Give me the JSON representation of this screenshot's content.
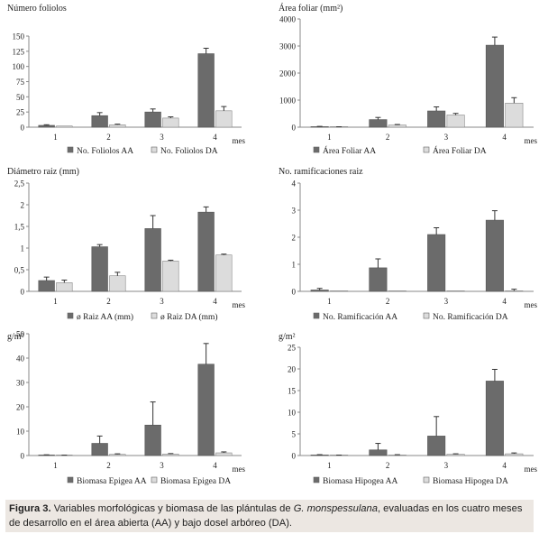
{
  "x_axis_unit": "mes",
  "chart_data": [
    {
      "type": "bar",
      "title": "Número foliolos",
      "categories": [
        "1",
        "2",
        "3",
        "4"
      ],
      "ylim": [
        0,
        150
      ],
      "yticks": [
        "0",
        "25",
        "50",
        "75",
        "100",
        "125",
        "150"
      ],
      "tick_values": [
        0,
        25,
        50,
        75,
        100,
        125,
        150
      ],
      "series": [
        {
          "name": "No. Foliolos AA",
          "color": "#6b6b6b",
          "values": [
            3,
            19,
            25,
            121
          ],
          "errors": [
            1,
            5,
            5,
            9
          ]
        },
        {
          "name": "No. Foliolos DA",
          "color": "#dcdcdc",
          "values": [
            2,
            4,
            15,
            27
          ],
          "errors": [
            0,
            1,
            2,
            7
          ]
        }
      ]
    },
    {
      "type": "bar",
      "title": "Área foliar (mm²)",
      "categories": [
        "1",
        "2",
        "3",
        "4"
      ],
      "ylim": [
        0,
        4000
      ],
      "yticks": [
        "0",
        "1000",
        "2000",
        "3000",
        "4000"
      ],
      "tick_values": [
        0,
        1000,
        2000,
        3000,
        4000
      ],
      "series": [
        {
          "name": "Área Foliar  AA",
          "color": "#6b6b6b",
          "values": [
            20,
            280,
            600,
            3030
          ],
          "errors": [
            10,
            80,
            150,
            300
          ]
        },
        {
          "name": "Área Foliar DA",
          "color": "#dcdcdc",
          "values": [
            10,
            80,
            450,
            890
          ],
          "errors": [
            5,
            20,
            60,
            200
          ]
        }
      ]
    },
    {
      "type": "bar",
      "title": "Diámetro raiz (mm)",
      "categories": [
        "1",
        "2",
        "3",
        "4"
      ],
      "ylim": [
        0,
        2.5
      ],
      "yticks": [
        "0",
        "0,5",
        "1",
        "1,5",
        "2",
        "2,5"
      ],
      "tick_values": [
        0,
        0.5,
        1,
        1.5,
        2,
        2.5
      ],
      "series": [
        {
          "name": "ø Raiz AA (mm)",
          "color": "#6b6b6b",
          "values": [
            0.25,
            1.03,
            1.45,
            1.83
          ],
          "errors": [
            0.08,
            0.05,
            0.3,
            0.12
          ]
        },
        {
          "name": "ø Raiz DA (mm)",
          "color": "#dcdcdc",
          "values": [
            0.2,
            0.36,
            0.7,
            0.84
          ],
          "errors": [
            0.06,
            0.08,
            0.02,
            0.02
          ]
        }
      ]
    },
    {
      "type": "bar",
      "title": "No. ramificaciones raiz",
      "categories": [
        "1",
        "2",
        "3",
        "4"
      ],
      "ylim": [
        0,
        4
      ],
      "yticks": [
        "0",
        "1",
        "2",
        "3",
        "4"
      ],
      "tick_values": [
        0,
        1,
        2,
        3,
        4
      ],
      "series": [
        {
          "name": "No. Ramificación AA",
          "color": "#6b6b6b",
          "values": [
            0.05,
            0.87,
            2.1,
            2.63
          ],
          "errors": [
            0.06,
            0.33,
            0.25,
            0.35
          ]
        },
        {
          "name": "No. Ramificación DA",
          "color": "#dcdcdc",
          "values": [
            0,
            0,
            0,
            0.02
          ],
          "errors": [
            0,
            0,
            0,
            0.06
          ]
        }
      ]
    },
    {
      "type": "bar",
      "title": "g/m²",
      "categories": [
        "1",
        "2",
        "3",
        "4"
      ],
      "ylim": [
        0,
        50
      ],
      "yticks": [
        "0",
        "10",
        "20",
        "30",
        "40",
        "50"
      ],
      "tick_values": [
        0,
        10,
        20,
        30,
        40,
        50
      ],
      "series": [
        {
          "name": "Biomasa Epigea AA",
          "color": "#6b6b6b",
          "values": [
            0.2,
            5,
            12.5,
            37.5
          ],
          "errors": [
            0.1,
            3,
            9.5,
            8.5
          ]
        },
        {
          "name": "Biomasa Epigea DA",
          "color": "#dcdcdc",
          "values": [
            0.1,
            0.5,
            0.6,
            1.1
          ],
          "errors": [
            0.05,
            0.2,
            0.2,
            0.4
          ]
        }
      ]
    },
    {
      "type": "bar",
      "title": "g/m²",
      "categories": [
        "1",
        "2",
        "3",
        "4"
      ],
      "ylim": [
        0,
        25
      ],
      "yticks": [
        "0",
        "5",
        "10",
        "15",
        "20",
        "25"
      ],
      "tick_values": [
        0,
        5,
        10,
        15,
        20,
        25
      ],
      "series": [
        {
          "name": "Biomasa Hipogea AA",
          "color": "#6b6b6b",
          "values": [
            0.1,
            1.3,
            4.5,
            17.2
          ],
          "errors": [
            0.1,
            1.5,
            4.5,
            2.7
          ]
        },
        {
          "name": "Biomasa Hipogea DA",
          "color": "#dcdcdc",
          "values": [
            0.05,
            0.1,
            0.3,
            0.4
          ],
          "errors": [
            0.05,
            0.1,
            0.1,
            0.2
          ]
        }
      ]
    }
  ],
  "caption": {
    "label": "Figura 3.",
    "text_before": " Variables morfológicas y biomasa de las plántulas de ",
    "species": "G. monspessulana",
    "text_after": ", evaluadas en los cuatro meses de desarrollo en el área abierta (AA) y bajo dosel arbóreo (DA)."
  }
}
